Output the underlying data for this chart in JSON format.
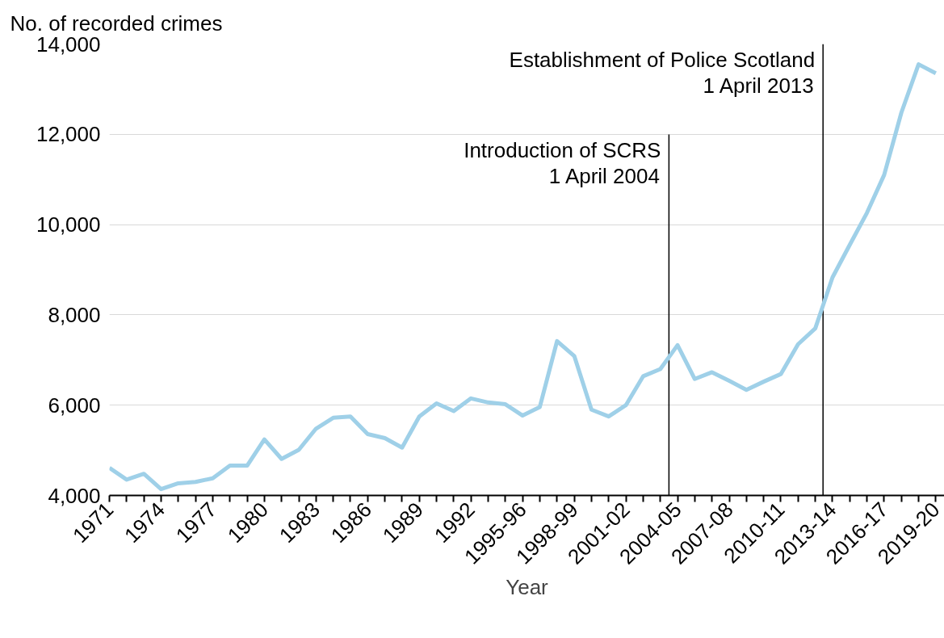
{
  "chart_data": {
    "type": "line",
    "xlabel": "Year",
    "ylabel": "No. of recorded crimes",
    "x": [
      1971,
      1972,
      1973,
      1974,
      1975,
      1976,
      1977,
      1978,
      1979,
      1980,
      1981,
      1982,
      1983,
      1984,
      1985,
      1986,
      1987,
      1988,
      1989,
      1990,
      1991,
      1992,
      1993,
      1994,
      1995,
      1996,
      1997,
      1998,
      1999,
      2000,
      2001,
      2002,
      2003,
      2004,
      2005,
      2006,
      2007,
      2008,
      2009,
      2010,
      2011,
      2012,
      2013,
      2014,
      2015,
      2016,
      2017,
      2018,
      2019
    ],
    "series": [
      {
        "color": "#9fd0e8",
        "values": [
          4610,
          4350,
          4480,
          4140,
          4270,
          4300,
          4380,
          4660,
          4660,
          5240,
          4810,
          5010,
          5480,
          5720,
          5750,
          5360,
          5270,
          5060,
          5750,
          6040,
          5870,
          6150,
          6060,
          6020,
          5770,
          5960,
          7420,
          7090,
          5900,
          5750,
          6000,
          6640,
          6800,
          7330,
          6580,
          6730,
          6540,
          6340,
          6520,
          6690,
          7350,
          7700,
          8830,
          9550,
          10260,
          11100,
          12480,
          13550,
          13350
        ]
      }
    ],
    "xlim": [
      1971,
      2019.5
    ],
    "xticks": [
      {
        "value": 1971,
        "label": "1971"
      },
      {
        "value": 1972,
        "label": null
      },
      {
        "value": 1973,
        "label": null
      },
      {
        "value": 1974,
        "label": "1974"
      },
      {
        "value": 1975,
        "label": null
      },
      {
        "value": 1976,
        "label": null
      },
      {
        "value": 1977,
        "label": "1977"
      },
      {
        "value": 1978,
        "label": null
      },
      {
        "value": 1979,
        "label": null
      },
      {
        "value": 1980,
        "label": "1980"
      },
      {
        "value": 1981,
        "label": null
      },
      {
        "value": 1982,
        "label": null
      },
      {
        "value": 1983,
        "label": "1983"
      },
      {
        "value": 1984,
        "label": null
      },
      {
        "value": 1985,
        "label": null
      },
      {
        "value": 1986,
        "label": "1986"
      },
      {
        "value": 1987,
        "label": null
      },
      {
        "value": 1988,
        "label": null
      },
      {
        "value": 1989,
        "label": "1989"
      },
      {
        "value": 1990,
        "label": null
      },
      {
        "value": 1991,
        "label": null
      },
      {
        "value": 1992,
        "label": "1992"
      },
      {
        "value": 1993,
        "label": null
      },
      {
        "value": 1994,
        "label": null
      },
      {
        "value": 1995,
        "label": "1995-96"
      },
      {
        "value": 1996,
        "label": null
      },
      {
        "value": 1997,
        "label": null
      },
      {
        "value": 1998,
        "label": "1998-99"
      },
      {
        "value": 1999,
        "label": null
      },
      {
        "value": 2000,
        "label": null
      },
      {
        "value": 2001,
        "label": "2001-02"
      },
      {
        "value": 2002,
        "label": null
      },
      {
        "value": 2003,
        "label": null
      },
      {
        "value": 2004,
        "label": "2004-05"
      },
      {
        "value": 2005,
        "label": null
      },
      {
        "value": 2006,
        "label": null
      },
      {
        "value": 2007,
        "label": "2007-08"
      },
      {
        "value": 2008,
        "label": null
      },
      {
        "value": 2009,
        "label": null
      },
      {
        "value": 2010,
        "label": "2010-11"
      },
      {
        "value": 2011,
        "label": null
      },
      {
        "value": 2012,
        "label": null
      },
      {
        "value": 2013,
        "label": "2013-14"
      },
      {
        "value": 2014,
        "label": null
      },
      {
        "value": 2015,
        "label": null
      },
      {
        "value": 2016,
        "label": "2016-17"
      },
      {
        "value": 2017,
        "label": null
      },
      {
        "value": 2018,
        "label": null
      },
      {
        "value": 2019,
        "label": "2019-20"
      }
    ],
    "ylim": [
      4000,
      14000
    ],
    "yticks": [
      {
        "value": 4000,
        "label": "4,000"
      },
      {
        "value": 6000,
        "label": "6,000"
      },
      {
        "value": 8000,
        "label": "8,000"
      },
      {
        "value": 10000,
        "label": "10,000"
      },
      {
        "value": 12000,
        "label": "12,000"
      },
      {
        "value": 14000,
        "label": "14,000"
      }
    ],
    "grid": "y",
    "ref_lines": [
      {
        "axis": "x",
        "value": 2003.5,
        "label": "Introduction of SCRS\n1 April 2004",
        "color": "#000000"
      },
      {
        "axis": "x",
        "value": 2012.45,
        "label": "Establishment of Police Scotland\n1 April 2013",
        "color": "#000000"
      }
    ]
  }
}
